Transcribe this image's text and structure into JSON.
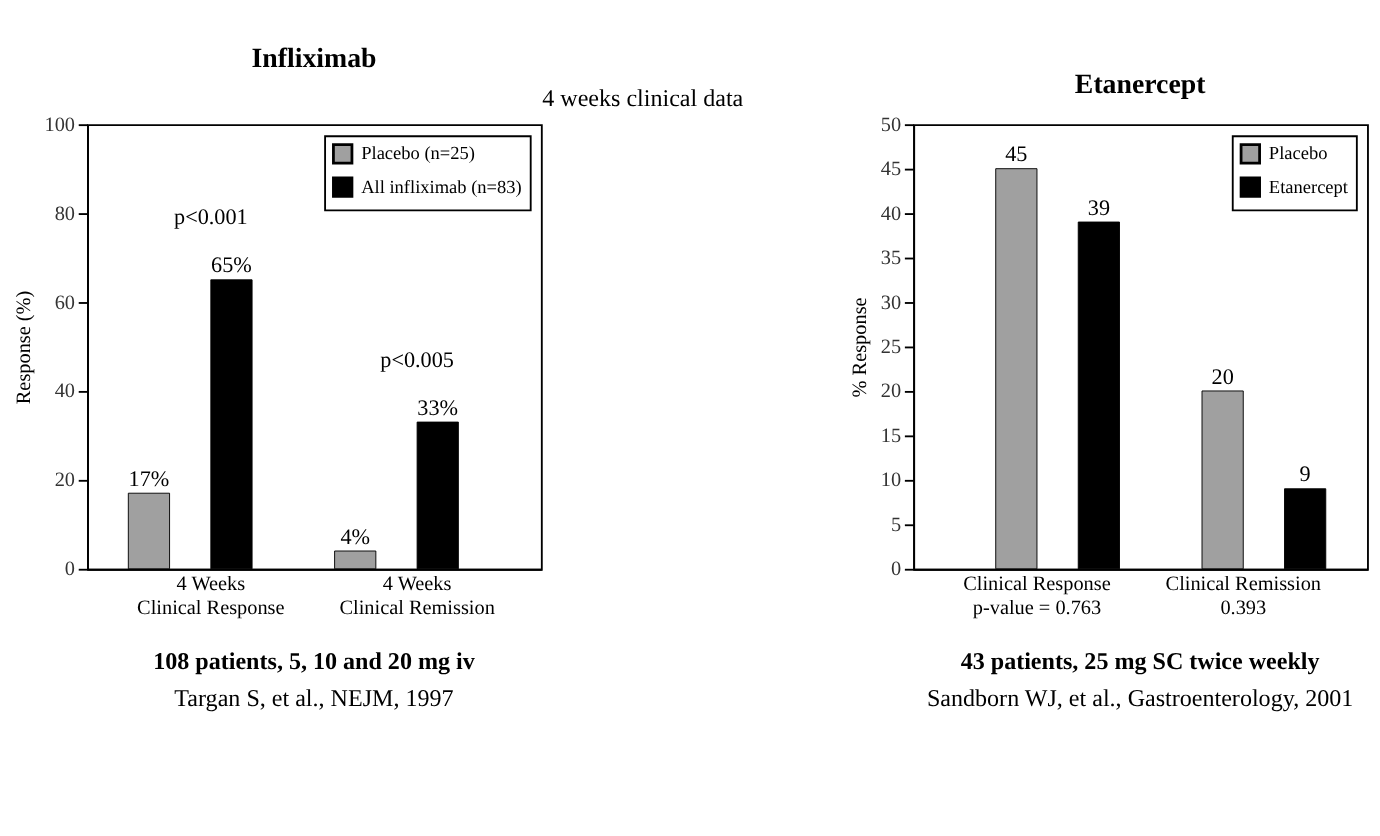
{
  "chart_data": [
    {
      "type": "bar",
      "title": "Infliximab",
      "subtitle": "4 weeks clinical data",
      "ylabel": "Response (%)",
      "categories": [
        "4 Weeks\nClinical Response",
        "4 Weeks\nClinical Remission"
      ],
      "series": [
        {
          "name": "Placebo (n=25)",
          "color": "#a0a0a0",
          "values": [
            17,
            4
          ],
          "value_labels": [
            "17%",
            "4%"
          ]
        },
        {
          "name": "All infliximab (n=83)",
          "color": "#000000",
          "values": [
            65,
            33
          ],
          "value_labels": [
            "65%",
            "33%"
          ]
        }
      ],
      "ylim": [
        0,
        100
      ],
      "yticks": [
        0,
        20,
        40,
        60,
        80,
        100
      ],
      "grid": false,
      "legend": "top right",
      "annotations": [
        "p<0.001",
        "p<0.005",
        "108 patients, 5, 10 and 20 mg iv",
        "Targan S, et al., NEJM, 1997"
      ]
    },
    {
      "type": "bar",
      "title": "Etanercept",
      "ylabel": "% Response",
      "categories": [
        "Clinical Response\np-value = 0.763",
        "Clinical Remission\n0.393"
      ],
      "series": [
        {
          "name": "Placebo",
          "color": "#a0a0a0",
          "values": [
            45,
            20
          ]
        },
        {
          "name": "Etanercept",
          "color": "#000000",
          "values": [
            39,
            9
          ]
        }
      ],
      "ylim": [
        0,
        50
      ],
      "yticks": [
        0,
        5,
        10,
        15,
        20,
        25,
        30,
        35,
        40,
        45,
        50
      ],
      "grid": false,
      "legend": "top right",
      "data_labels": true,
      "annotations": [
        "43 patients, 25 mg SC twice weekly",
        "Sandborn WJ, et al., Gastroenterology, 2001"
      ]
    }
  ]
}
